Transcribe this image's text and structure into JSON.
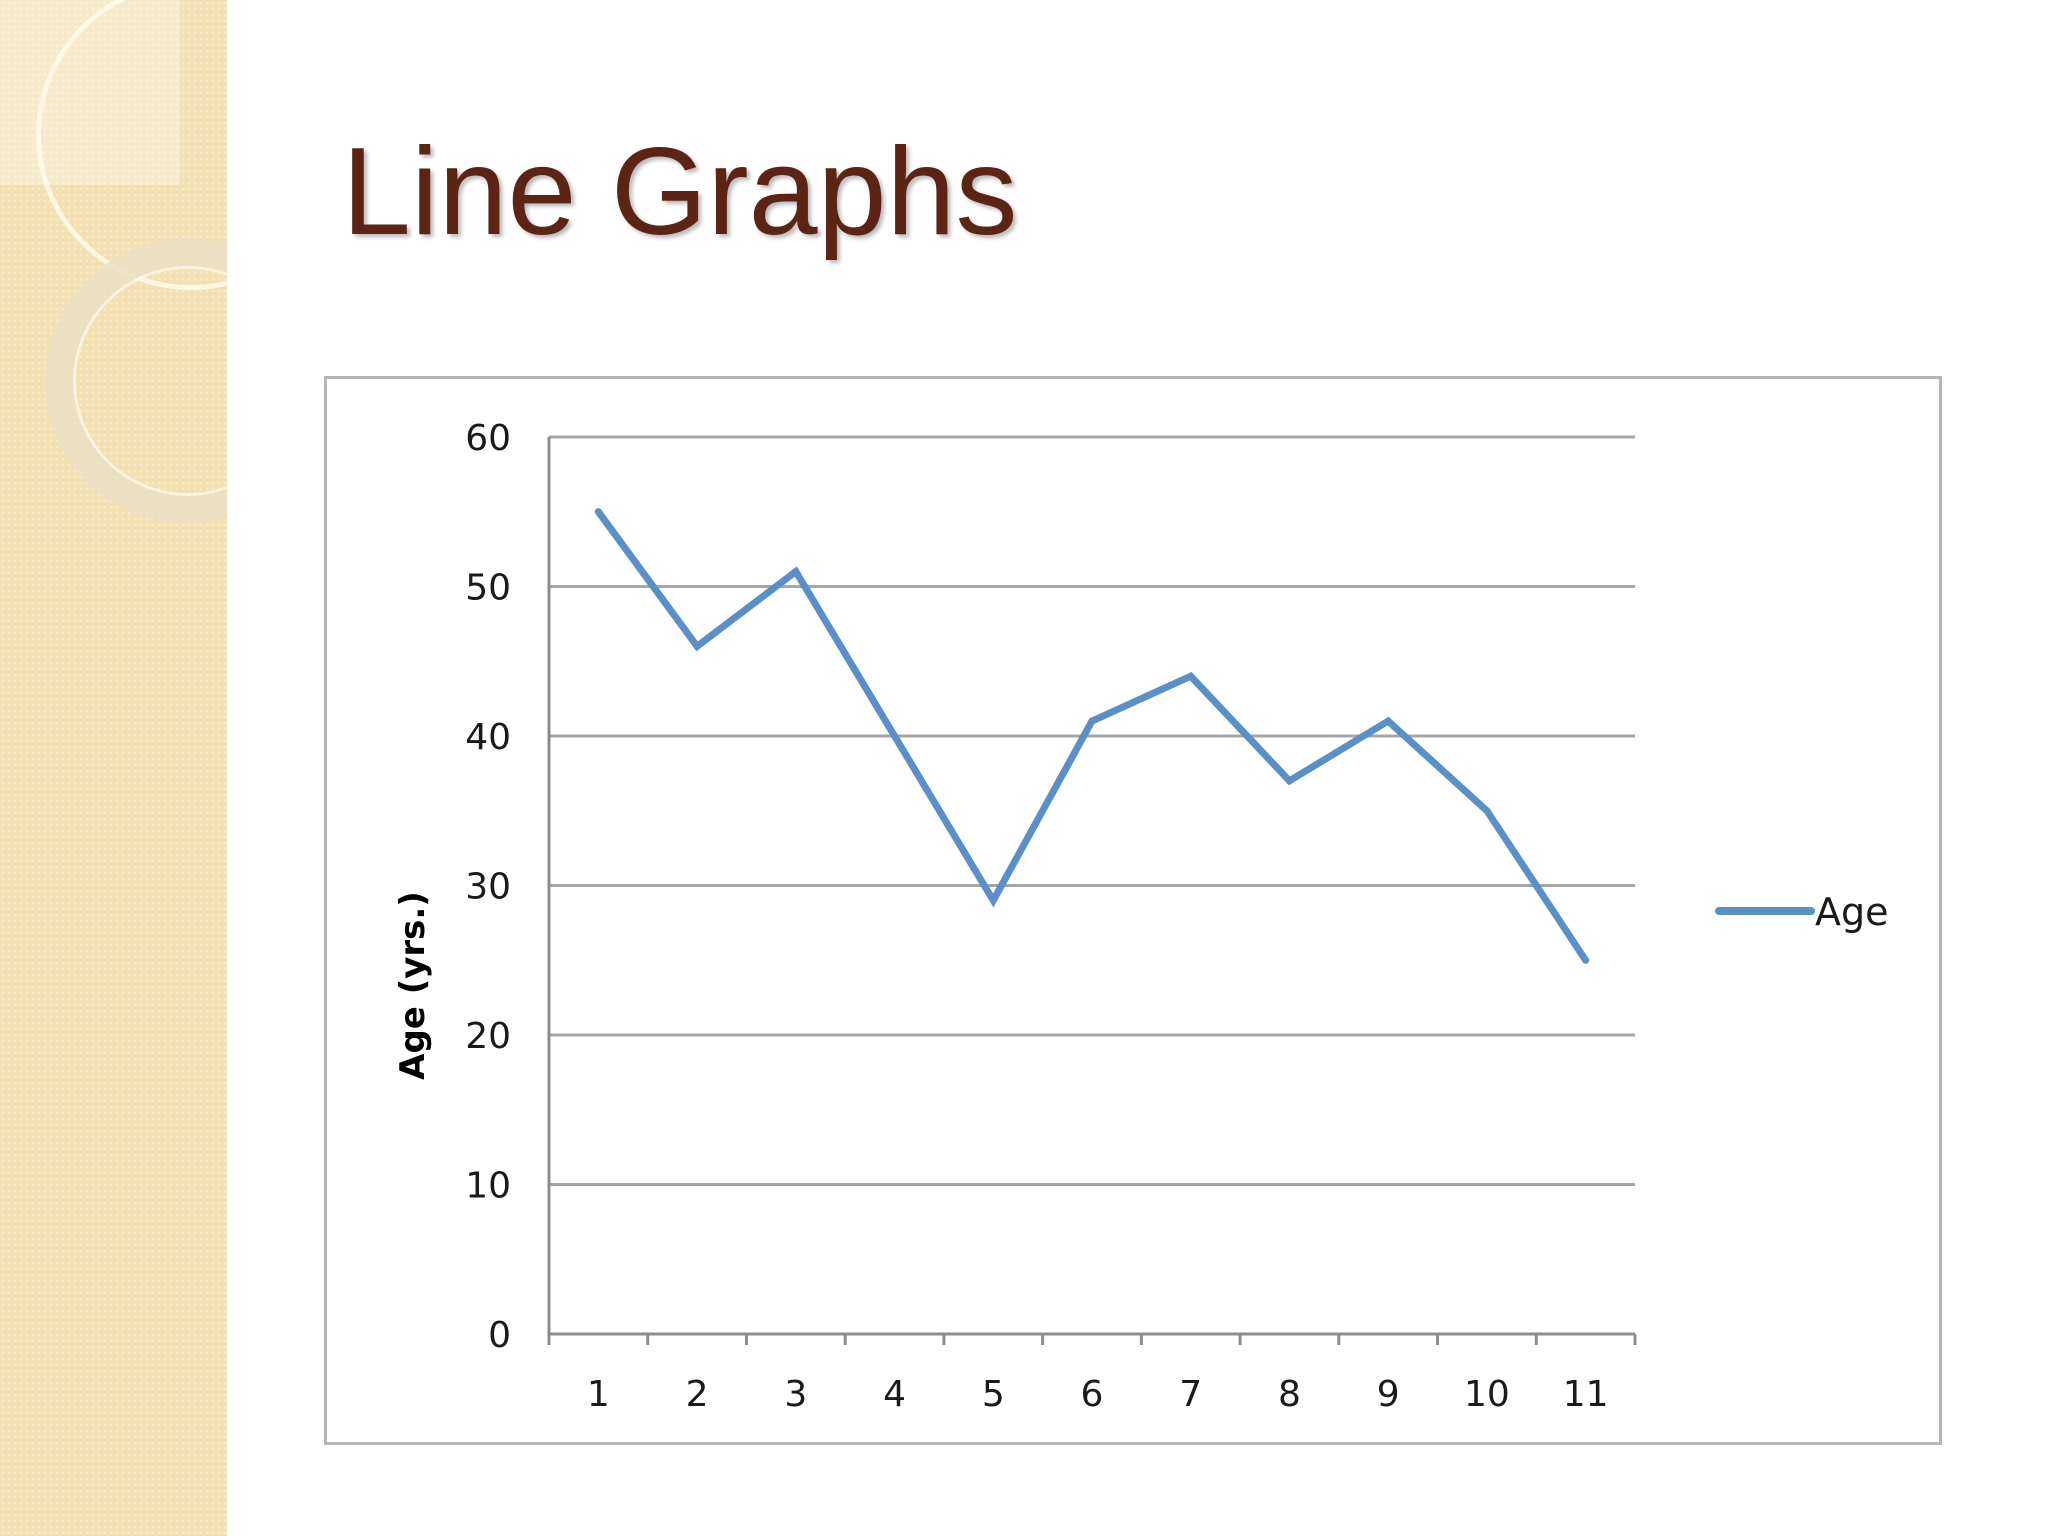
{
  "slide": {
    "title": "Line Graphs"
  },
  "chart_data": {
    "type": "line",
    "categories": [
      "1",
      "2",
      "3",
      "4",
      "5",
      "6",
      "7",
      "8",
      "9",
      "10",
      "11"
    ],
    "series": [
      {
        "name": "Age",
        "values": [
          55,
          46,
          51,
          40,
          29,
          41,
          44,
          37,
          41,
          35,
          25
        ],
        "color": "#5b8fc7"
      }
    ],
    "ylabel": "Age (yrs.)",
    "xlabel": "",
    "ylim": [
      0,
      60
    ],
    "yticks": [
      0,
      10,
      20,
      30,
      40,
      50,
      60
    ],
    "grid": true,
    "legend": "right"
  }
}
